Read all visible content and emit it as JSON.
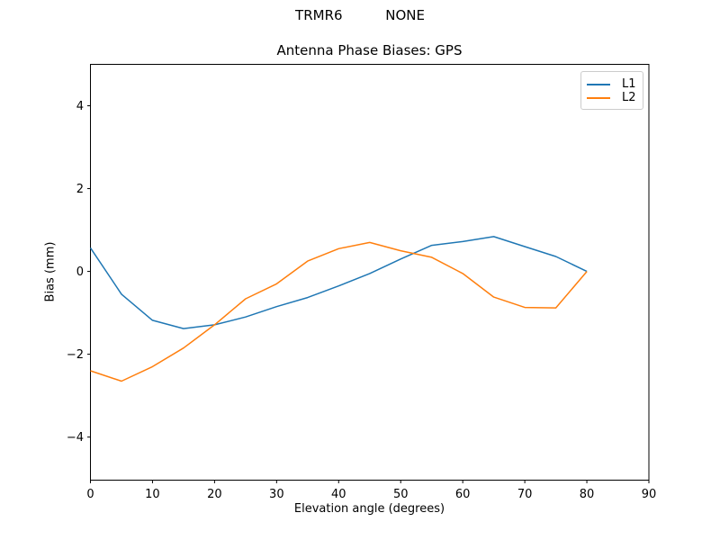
{
  "suptitle": "TRMR6          NONE",
  "chart_data": {
    "type": "line",
    "title": "Antenna Phase Biases: GPS",
    "xlabel": "Elevation angle (degrees)",
    "ylabel": "Bias (mm)",
    "x": [
      0,
      5,
      10,
      15,
      20,
      25,
      30,
      35,
      40,
      45,
      50,
      55,
      60,
      65,
      70,
      75,
      80
    ],
    "series": [
      {
        "name": "L1",
        "color": "#1f77b4",
        "values": [
          0.57,
          -0.55,
          -1.18,
          -1.38,
          -1.29,
          -1.1,
          -0.85,
          -0.63,
          -0.35,
          -0.05,
          0.3,
          0.63,
          0.72,
          0.84,
          0.6,
          0.36,
          0.0
        ]
      },
      {
        "name": "L2",
        "color": "#ff7f0e",
        "values": [
          -2.4,
          -2.65,
          -2.3,
          -1.85,
          -1.29,
          -0.66,
          -0.3,
          0.25,
          0.55,
          0.7,
          0.5,
          0.34,
          -0.05,
          -0.62,
          -0.87,
          -0.88,
          0.0
        ]
      }
    ],
    "xlim": [
      0,
      90
    ],
    "ylim": [
      -5.04,
      5.0
    ],
    "xticks": [
      0,
      10,
      20,
      30,
      40,
      50,
      60,
      70,
      80,
      90
    ],
    "xtick_labels": [
      "0",
      "10",
      "20",
      "30",
      "40",
      "50",
      "60",
      "70",
      "80",
      "90"
    ],
    "yticks": [
      -4,
      -2,
      0,
      2,
      4
    ],
    "ytick_labels": [
      "−4",
      "−2",
      "0",
      "2",
      "4"
    ],
    "grid": false,
    "legend_position": "upper right",
    "axis_color": "#000000",
    "background_color": "#ffffff"
  }
}
